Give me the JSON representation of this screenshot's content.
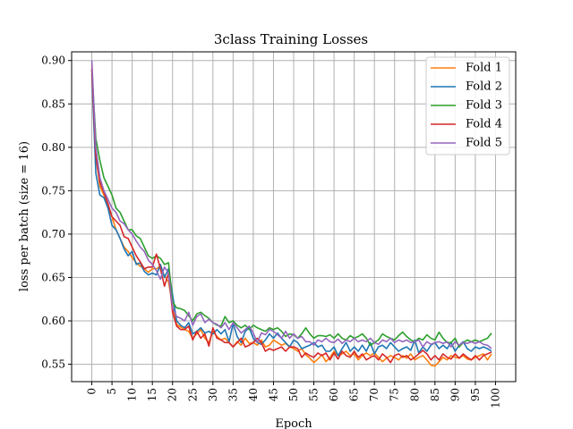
{
  "chart_data": {
    "type": "line",
    "title": "3class Training Losses",
    "xlabel": "Epoch",
    "ylabel": "loss per batch (size = 16)",
    "xlim": [
      -5,
      105
    ],
    "ylim": [
      0.53,
      0.91
    ],
    "xticks": [
      0,
      5,
      10,
      15,
      20,
      25,
      30,
      35,
      40,
      45,
      50,
      55,
      60,
      65,
      70,
      75,
      80,
      85,
      90,
      95,
      100
    ],
    "yticks": [
      0.55,
      0.6,
      0.65,
      0.7,
      0.75,
      0.8,
      0.85,
      0.9
    ],
    "ytick_labels": [
      "0.55",
      "0.60",
      "0.65",
      "0.70",
      "0.75",
      "0.80",
      "0.85",
      "0.90"
    ],
    "grid": true,
    "legend_position": "top-right",
    "x": [
      0,
      1,
      2,
      3,
      4,
      5,
      6,
      7,
      8,
      9,
      10,
      11,
      12,
      13,
      14,
      15,
      16,
      17,
      18,
      19,
      20,
      21,
      22,
      23,
      24,
      25,
      26,
      27,
      28,
      29,
      30,
      31,
      32,
      33,
      34,
      35,
      36,
      37,
      38,
      39,
      40,
      41,
      42,
      43,
      44,
      45,
      46,
      47,
      48,
      49,
      50,
      51,
      52,
      53,
      54,
      55,
      56,
      57,
      58,
      59,
      60,
      61,
      62,
      63,
      64,
      65,
      66,
      67,
      68,
      69,
      70,
      71,
      72,
      73,
      74,
      75,
      76,
      77,
      78,
      79,
      80,
      81,
      82,
      83,
      84,
      85,
      86,
      87,
      88,
      89,
      90,
      91,
      92,
      93,
      94,
      95,
      96,
      97,
      98,
      99
    ],
    "series": [
      {
        "name": "Fold 1",
        "color": "#ff7f0e",
        "values": [
          0.895,
          0.79,
          0.755,
          0.745,
          0.73,
          0.72,
          0.705,
          0.695,
          0.685,
          0.68,
          0.673,
          0.667,
          0.663,
          0.66,
          0.656,
          0.66,
          0.66,
          0.663,
          0.652,
          0.645,
          0.618,
          0.596,
          0.593,
          0.59,
          0.588,
          0.58,
          0.585,
          0.59,
          0.58,
          0.575,
          0.588,
          0.582,
          0.578,
          0.58,
          0.575,
          0.57,
          0.576,
          0.572,
          0.58,
          0.574,
          0.575,
          0.572,
          0.578,
          0.57,
          0.572,
          0.578,
          0.575,
          0.572,
          0.574,
          0.57,
          0.568,
          0.565,
          0.568,
          0.561,
          0.557,
          0.552,
          0.556,
          0.561,
          0.553,
          0.558,
          0.565,
          0.56,
          0.562,
          0.565,
          0.56,
          0.562,
          0.555,
          0.56,
          0.563,
          0.56,
          0.563,
          0.558,
          0.553,
          0.557,
          0.56,
          0.558,
          0.555,
          0.56,
          0.557,
          0.562,
          0.555,
          0.558,
          0.56,
          0.555,
          0.549,
          0.548,
          0.553,
          0.558,
          0.555,
          0.56,
          0.558,
          0.557,
          0.56,
          0.556,
          0.555,
          0.558,
          0.56,
          0.562,
          0.555,
          0.562
        ]
      },
      {
        "name": "Fold 2",
        "color": "#1f77b4",
        "values": [
          0.885,
          0.77,
          0.745,
          0.742,
          0.73,
          0.71,
          0.705,
          0.695,
          0.683,
          0.675,
          0.68,
          0.665,
          0.667,
          0.657,
          0.653,
          0.655,
          0.653,
          0.665,
          0.65,
          0.66,
          0.63,
          0.6,
          0.595,
          0.592,
          0.598,
          0.585,
          0.588,
          0.592,
          0.586,
          0.588,
          0.585,
          0.59,
          0.585,
          0.59,
          0.576,
          0.597,
          0.582,
          0.575,
          0.588,
          0.592,
          0.58,
          0.575,
          0.573,
          0.578,
          0.585,
          0.58,
          0.586,
          0.58,
          0.575,
          0.57,
          0.578,
          0.575,
          0.568,
          0.57,
          0.572,
          0.575,
          0.57,
          0.572,
          0.565,
          0.565,
          0.57,
          0.56,
          0.568,
          0.575,
          0.565,
          0.57,
          0.565,
          0.572,
          0.565,
          0.575,
          0.562,
          0.57,
          0.572,
          0.568,
          0.575,
          0.57,
          0.565,
          0.568,
          0.57,
          0.566,
          0.578,
          0.563,
          0.57,
          0.565,
          0.572,
          0.575,
          0.568,
          0.572,
          0.568,
          0.575,
          0.565,
          0.572,
          0.576,
          0.568,
          0.565,
          0.57,
          0.568,
          0.57,
          0.568,
          0.565
        ]
      },
      {
        "name": "Fold 3",
        "color": "#2ca02c",
        "values": [
          0.89,
          0.81,
          0.785,
          0.765,
          0.755,
          0.745,
          0.73,
          0.725,
          0.715,
          0.705,
          0.705,
          0.698,
          0.695,
          0.685,
          0.675,
          0.672,
          0.675,
          0.672,
          0.665,
          0.667,
          0.622,
          0.615,
          0.614,
          0.612,
          0.606,
          0.6,
          0.608,
          0.61,
          0.606,
          0.603,
          0.598,
          0.595,
          0.594,
          0.605,
          0.598,
          0.6,
          0.595,
          0.592,
          0.595,
          0.59,
          0.595,
          0.592,
          0.59,
          0.588,
          0.592,
          0.59,
          0.592,
          0.588,
          0.582,
          0.585,
          0.584,
          0.58,
          0.585,
          0.592,
          0.585,
          0.58,
          0.583,
          0.583,
          0.582,
          0.584,
          0.58,
          0.585,
          0.58,
          0.578,
          0.583,
          0.58,
          0.582,
          0.585,
          0.58,
          0.572,
          0.575,
          0.578,
          0.585,
          0.582,
          0.58,
          0.578,
          0.583,
          0.587,
          0.582,
          0.578,
          0.576,
          0.58,
          0.578,
          0.584,
          0.58,
          0.578,
          0.587,
          0.58,
          0.575,
          0.575,
          0.58,
          0.57,
          0.575,
          0.578,
          0.576,
          0.578,
          0.576,
          0.578,
          0.58,
          0.586
        ]
      },
      {
        "name": "Fold 4",
        "color": "#d62728",
        "values": [
          0.89,
          0.79,
          0.76,
          0.748,
          0.735,
          0.72,
          0.715,
          0.71,
          0.697,
          0.695,
          0.685,
          0.675,
          0.668,
          0.66,
          0.662,
          0.662,
          0.677,
          0.66,
          0.64,
          0.655,
          0.61,
          0.594,
          0.59,
          0.59,
          0.594,
          0.578,
          0.588,
          0.58,
          0.585,
          0.571,
          0.592,
          0.58,
          0.578,
          0.575,
          0.575,
          0.57,
          0.575,
          0.58,
          0.57,
          0.572,
          0.575,
          0.58,
          0.575,
          0.565,
          0.568,
          0.566,
          0.568,
          0.57,
          0.565,
          0.57,
          0.57,
          0.568,
          0.558,
          0.563,
          0.56,
          0.558,
          0.563,
          0.56,
          0.563,
          0.555,
          0.563,
          0.556,
          0.565,
          0.56,
          0.558,
          0.565,
          0.558,
          0.562,
          0.555,
          0.558,
          0.56,
          0.555,
          0.562,
          0.558,
          0.552,
          0.56,
          0.562,
          0.558,
          0.56,
          0.555,
          0.558,
          0.562,
          0.566,
          0.562,
          0.555,
          0.56,
          0.555,
          0.562,
          0.558,
          0.556,
          0.562,
          0.557,
          0.562,
          0.558,
          0.555,
          0.56,
          0.555,
          0.56,
          0.562,
          0.564
        ]
      },
      {
        "name": "Fold 5",
        "color": "#9467bd",
        "values": [
          0.9,
          0.8,
          0.765,
          0.75,
          0.74,
          0.73,
          0.725,
          0.715,
          0.712,
          0.705,
          0.7,
          0.692,
          0.685,
          0.68,
          0.67,
          0.665,
          0.658,
          0.648,
          0.662,
          0.655,
          0.615,
          0.605,
          0.603,
          0.6,
          0.61,
          0.595,
          0.605,
          0.608,
          0.598,
          0.602,
          0.598,
          0.596,
          0.592,
          0.598,
          0.59,
          0.598,
          0.592,
          0.586,
          0.59,
          0.594,
          0.586,
          0.575,
          0.586,
          0.584,
          0.59,
          0.588,
          0.584,
          0.58,
          0.588,
          0.58,
          0.585,
          0.58,
          0.582,
          0.576,
          0.576,
          0.572,
          0.578,
          0.576,
          0.58,
          0.576,
          0.575,
          0.579,
          0.574,
          0.578,
          0.576,
          0.58,
          0.576,
          0.578,
          0.576,
          0.58,
          0.575,
          0.573,
          0.578,
          0.576,
          0.58,
          0.575,
          0.578,
          0.576,
          0.578,
          0.575,
          0.576,
          0.578,
          0.57,
          0.576,
          0.573,
          0.575,
          0.576,
          0.574,
          0.576,
          0.57,
          0.576,
          0.572,
          0.575,
          0.574,
          0.576,
          0.574,
          0.576,
          0.573,
          0.572,
          0.568
        ]
      }
    ]
  }
}
